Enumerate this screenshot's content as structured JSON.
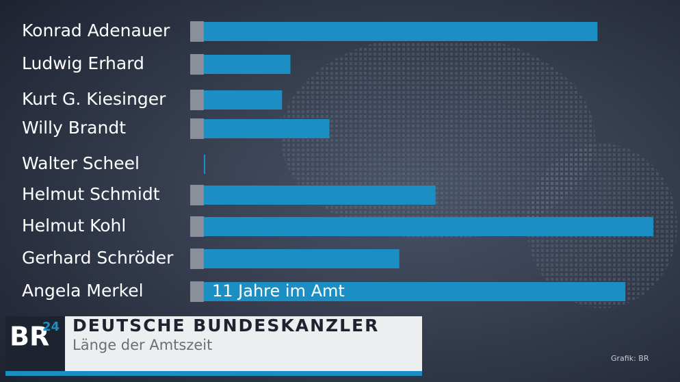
{
  "chart_data": {
    "type": "bar",
    "orientation": "horizontal",
    "title": "DEUTSCHE BUNDESKANZLER",
    "subtitle": "Länge der Amtszeit",
    "categories": [
      "Konrad Adenauer",
      "Ludwig Erhard",
      "Kurt G. Kiesinger",
      "Willy Brandt",
      "Walter Scheel",
      "Helmut Schmidt",
      "Helmut Kohl",
      "Gerhard Schröder",
      "Angela Merkel"
    ],
    "values": [
      14.1,
      3.1,
      2.8,
      4.5,
      0.05,
      8.3,
      16.1,
      7.0,
      15.1
    ],
    "color": "#1b8fc3",
    "annotation": "11 Jahre im Amt",
    "logo": {
      "main": "BR",
      "sup": "24"
    },
    "source": "Grafik: BR"
  }
}
